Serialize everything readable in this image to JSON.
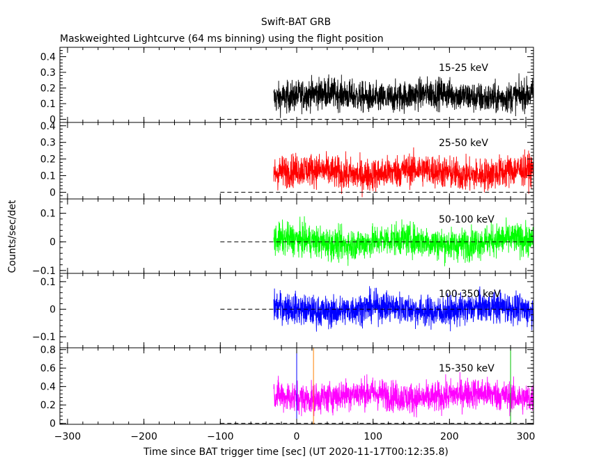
{
  "title": "Swift-BAT GRB",
  "subtitle": "Maskweighted Lightcurve (64 ms binning) using the flight position",
  "ylabel": "Counts/sec/det",
  "xlabel": "Time since BAT trigger time [sec] (UT 2020-11-17T00:12:35.8)",
  "chart_data": {
    "type": "line",
    "xlim": [
      -310,
      310
    ],
    "x_ticks": [
      -300,
      -200,
      -100,
      0,
      100,
      200,
      300
    ],
    "x_tick_labels": [
      "−300",
      "−200",
      "−100",
      "0",
      "100",
      "200",
      "300"
    ],
    "data_start": -30,
    "data_end": 310,
    "baseline_start": -100,
    "markers": [
      {
        "x": 0,
        "color": "#0000ff"
      },
      {
        "x": 22,
        "color": "#ff8000"
      },
      {
        "x": 280,
        "color": "#00c000"
      }
    ],
    "panels": [
      {
        "band_label": "15-25 keV",
        "color": "#000000",
        "ylim": [
          -0.02,
          0.46
        ],
        "yticks": [
          0,
          0.1,
          0.2,
          0.3,
          0.4
        ],
        "ytick_labels": [
          "0",
          "0.1",
          "0.2",
          "0.3",
          "0.4"
        ],
        "mean": 0.15,
        "noise": 0.07
      },
      {
        "band_label": "25-50 keV",
        "color": "#ff0000",
        "ylim": [
          -0.04,
          0.42
        ],
        "yticks": [
          0,
          0.1,
          0.2,
          0.3,
          0.4
        ],
        "ytick_labels": [
          "0",
          "0.1",
          "0.2",
          "0.3",
          "0.4"
        ],
        "mean": 0.12,
        "noise": 0.07
      },
      {
        "band_label": "50-100 keV",
        "color": "#00ff00",
        "ylim": [
          -0.11,
          0.15
        ],
        "yticks": [
          -0.1,
          0,
          0.1
        ],
        "ytick_labels": [
          "−0.1",
          "0",
          "0.1"
        ],
        "mean": 0.0,
        "noise": 0.04
      },
      {
        "band_label": "100-350 keV",
        "color": "#0000ff",
        "ylim": [
          -0.14,
          0.13
        ],
        "yticks": [
          -0.1,
          0,
          0.1
        ],
        "ytick_labels": [
          "−0.1",
          "0",
          "0.1"
        ],
        "mean": 0.0,
        "noise": 0.04
      },
      {
        "band_label": "15-350 keV",
        "color": "#ff00ff",
        "ylim": [
          -0.01,
          0.82
        ],
        "yticks": [
          0,
          0.2,
          0.4,
          0.6,
          0.8
        ],
        "ytick_labels": [
          "0",
          "0.2",
          "0.4",
          "0.6",
          "0.8"
        ],
        "mean": 0.3,
        "noise": 0.12
      }
    ]
  }
}
